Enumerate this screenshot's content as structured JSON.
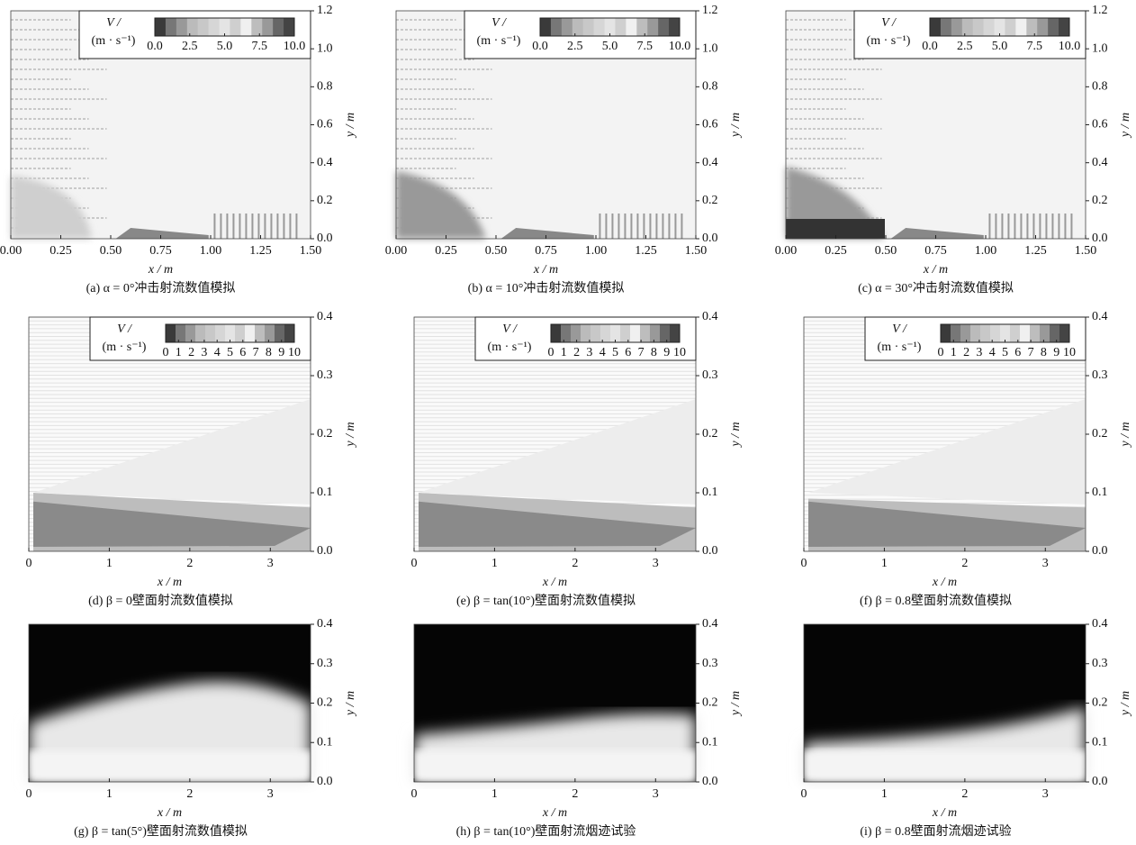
{
  "panels": [
    {
      "caption": "(a) α = 0°冲击射流数值模拟",
      "xlabel": "x / m",
      "ylabel": "y / m",
      "xlim": [
        0,
        1.5
      ],
      "ylim": [
        0,
        1.2
      ],
      "xticks": [
        {
          "value": 0,
          "label": "0.00"
        },
        0.25,
        {
          "value": 0.5,
          "label": "0.50"
        },
        0.75,
        {
          "value": 1,
          "label": "1.00"
        },
        1.25,
        {
          "value": 1.5,
          "label": "1.50"
        }
      ],
      "yticks": [
        {
          "value": 0,
          "label": "0.0"
        },
        0.2,
        0.4,
        0.6,
        0.8,
        {
          "value": 1,
          "label": "1.0"
        },
        1.2
      ],
      "colorbar": {
        "title": "V /",
        "unit": "(m · s⁻¹)",
        "lim": [
          0,
          10
        ],
        "ticks": [
          {
            "value": 0,
            "label": "0.0"
          },
          2.5,
          {
            "value": 5,
            "label": "5.0"
          },
          7.5,
          {
            "value": 10,
            "label": "10.0"
          }
        ]
      }
    },
    {
      "caption": "(b) α = 10°冲击射流数值模拟",
      "xlabel": "x / m",
      "ylabel": "y / m",
      "xlim": [
        0,
        1.5
      ],
      "ylim": [
        0,
        1.2
      ],
      "xticks": [
        {
          "value": 0,
          "label": "0.00"
        },
        0.25,
        {
          "value": 0.5,
          "label": "0.50"
        },
        0.75,
        {
          "value": 1,
          "label": "1.00"
        },
        1.25,
        {
          "value": 1.5,
          "label": "1.50"
        }
      ],
      "yticks": [
        {
          "value": 0,
          "label": "0.0"
        },
        0.2,
        0.4,
        0.6,
        0.8,
        {
          "value": 1,
          "label": "1.0"
        },
        1.2
      ],
      "colorbar": {
        "title": "V /",
        "unit": "(m · s⁻¹)",
        "lim": [
          0,
          10
        ],
        "ticks": [
          {
            "value": 0,
            "label": "0.0"
          },
          2.5,
          {
            "value": 5,
            "label": "5.0"
          },
          7.5,
          {
            "value": 10,
            "label": "10.0"
          }
        ]
      }
    },
    {
      "caption": "(c) α = 30°冲击射流数值模拟",
      "xlabel": "x / m",
      "ylabel": "y / m",
      "xlim": [
        0,
        1.5
      ],
      "ylim": [
        0,
        1.2
      ],
      "xticks": [
        {
          "value": 0,
          "label": "0.00"
        },
        0.25,
        {
          "value": 0.5,
          "label": "0.50"
        },
        0.75,
        {
          "value": 1,
          "label": "1.00"
        },
        1.25,
        {
          "value": 1.5,
          "label": "1.50"
        }
      ],
      "yticks": [
        {
          "value": 0,
          "label": "0.0"
        },
        0.2,
        0.4,
        0.6,
        0.8,
        {
          "value": 1,
          "label": "1.0"
        },
        1.2
      ],
      "colorbar": {
        "title": "V /",
        "unit": "(m · s⁻¹)",
        "lim": [
          0,
          10
        ],
        "ticks": [
          {
            "value": 0,
            "label": "0.0"
          },
          2.5,
          {
            "value": 5,
            "label": "5.0"
          },
          7.5,
          {
            "value": 10,
            "label": "10.0"
          }
        ]
      }
    },
    {
      "caption": "(d) β = 0壁面射流数值模拟",
      "xlabel": "x / m",
      "ylabel": "y / m",
      "xlim": [
        0,
        3.5
      ],
      "ylim": [
        0,
        0.4
      ],
      "xticks": [
        0,
        1,
        2,
        3
      ],
      "yticks": [
        {
          "value": 0,
          "label": "0.0"
        },
        0.1,
        0.2,
        0.3,
        0.4
      ],
      "colorbar": {
        "title": "V /",
        "unit": "(m · s⁻¹)",
        "lim": [
          0,
          10
        ],
        "ticks": [
          0,
          1,
          2,
          3,
          4,
          5,
          6,
          7,
          8,
          9,
          10
        ]
      }
    },
    {
      "caption": "(e) β = tan(10°)壁面射流数值模拟",
      "xlabel": "x / m",
      "ylabel": "y / m",
      "xlim": [
        0,
        3.5
      ],
      "ylim": [
        0,
        0.4
      ],
      "xticks": [
        0,
        1,
        2,
        3
      ],
      "yticks": [
        {
          "value": 0,
          "label": "0.0"
        },
        0.1,
        0.2,
        0.3,
        0.4
      ],
      "colorbar": {
        "title": "V /",
        "unit": "(m · s⁻¹)",
        "lim": [
          0,
          10
        ],
        "ticks": [
          0,
          1,
          2,
          3,
          4,
          5,
          6,
          7,
          8,
          9,
          10
        ]
      }
    },
    {
      "caption": "(f) β = 0.8壁面射流数值模拟",
      "xlabel": "x / m",
      "ylabel": "y / m",
      "xlim": [
        0,
        3.5
      ],
      "ylim": [
        0,
        0.4
      ],
      "xticks": [
        0,
        1,
        2,
        3
      ],
      "yticks": [
        {
          "value": 0,
          "label": "0.0"
        },
        0.1,
        0.2,
        0.3,
        0.4
      ],
      "colorbar": {
        "title": "V /",
        "unit": "(m · s⁻¹)",
        "lim": [
          0,
          10
        ],
        "ticks": [
          0,
          1,
          2,
          3,
          4,
          5,
          6,
          7,
          8,
          9,
          10
        ]
      }
    },
    {
      "caption": "(g) β = tan(5°)壁面射流数值模拟",
      "xlabel": "x / m",
      "ylabel": "y / m",
      "xlim": [
        0,
        3.5
      ],
      "ylim": [
        0,
        0.4
      ],
      "xticks": [
        0,
        1,
        2,
        3
      ],
      "yticks": [
        {
          "value": 0,
          "label": "0.0"
        },
        0.1,
        0.2,
        0.3,
        0.4
      ]
    },
    {
      "caption": "(h) β = tan(10°)壁面射流烟迹试验",
      "xlabel": "x / m",
      "ylabel": "y / m",
      "xlim": [
        0,
        3.5
      ],
      "ylim": [
        0,
        0.4
      ],
      "xticks": [
        0,
        1,
        2,
        3
      ],
      "yticks": [
        {
          "value": 0,
          "label": "0.0"
        },
        0.1,
        0.2,
        0.3,
        0.4
      ]
    },
    {
      "caption": "(i) β = 0.8壁面射流烟迹试验",
      "xlabel": "x / m",
      "ylabel": "y / m",
      "xlim": [
        0,
        3.5
      ],
      "ylim": [
        0,
        0.4
      ],
      "xticks": [
        0,
        1,
        2,
        3
      ],
      "yticks": [
        {
          "value": 0,
          "label": "0.0"
        },
        0.1,
        0.2,
        0.3,
        0.4
      ]
    }
  ]
}
